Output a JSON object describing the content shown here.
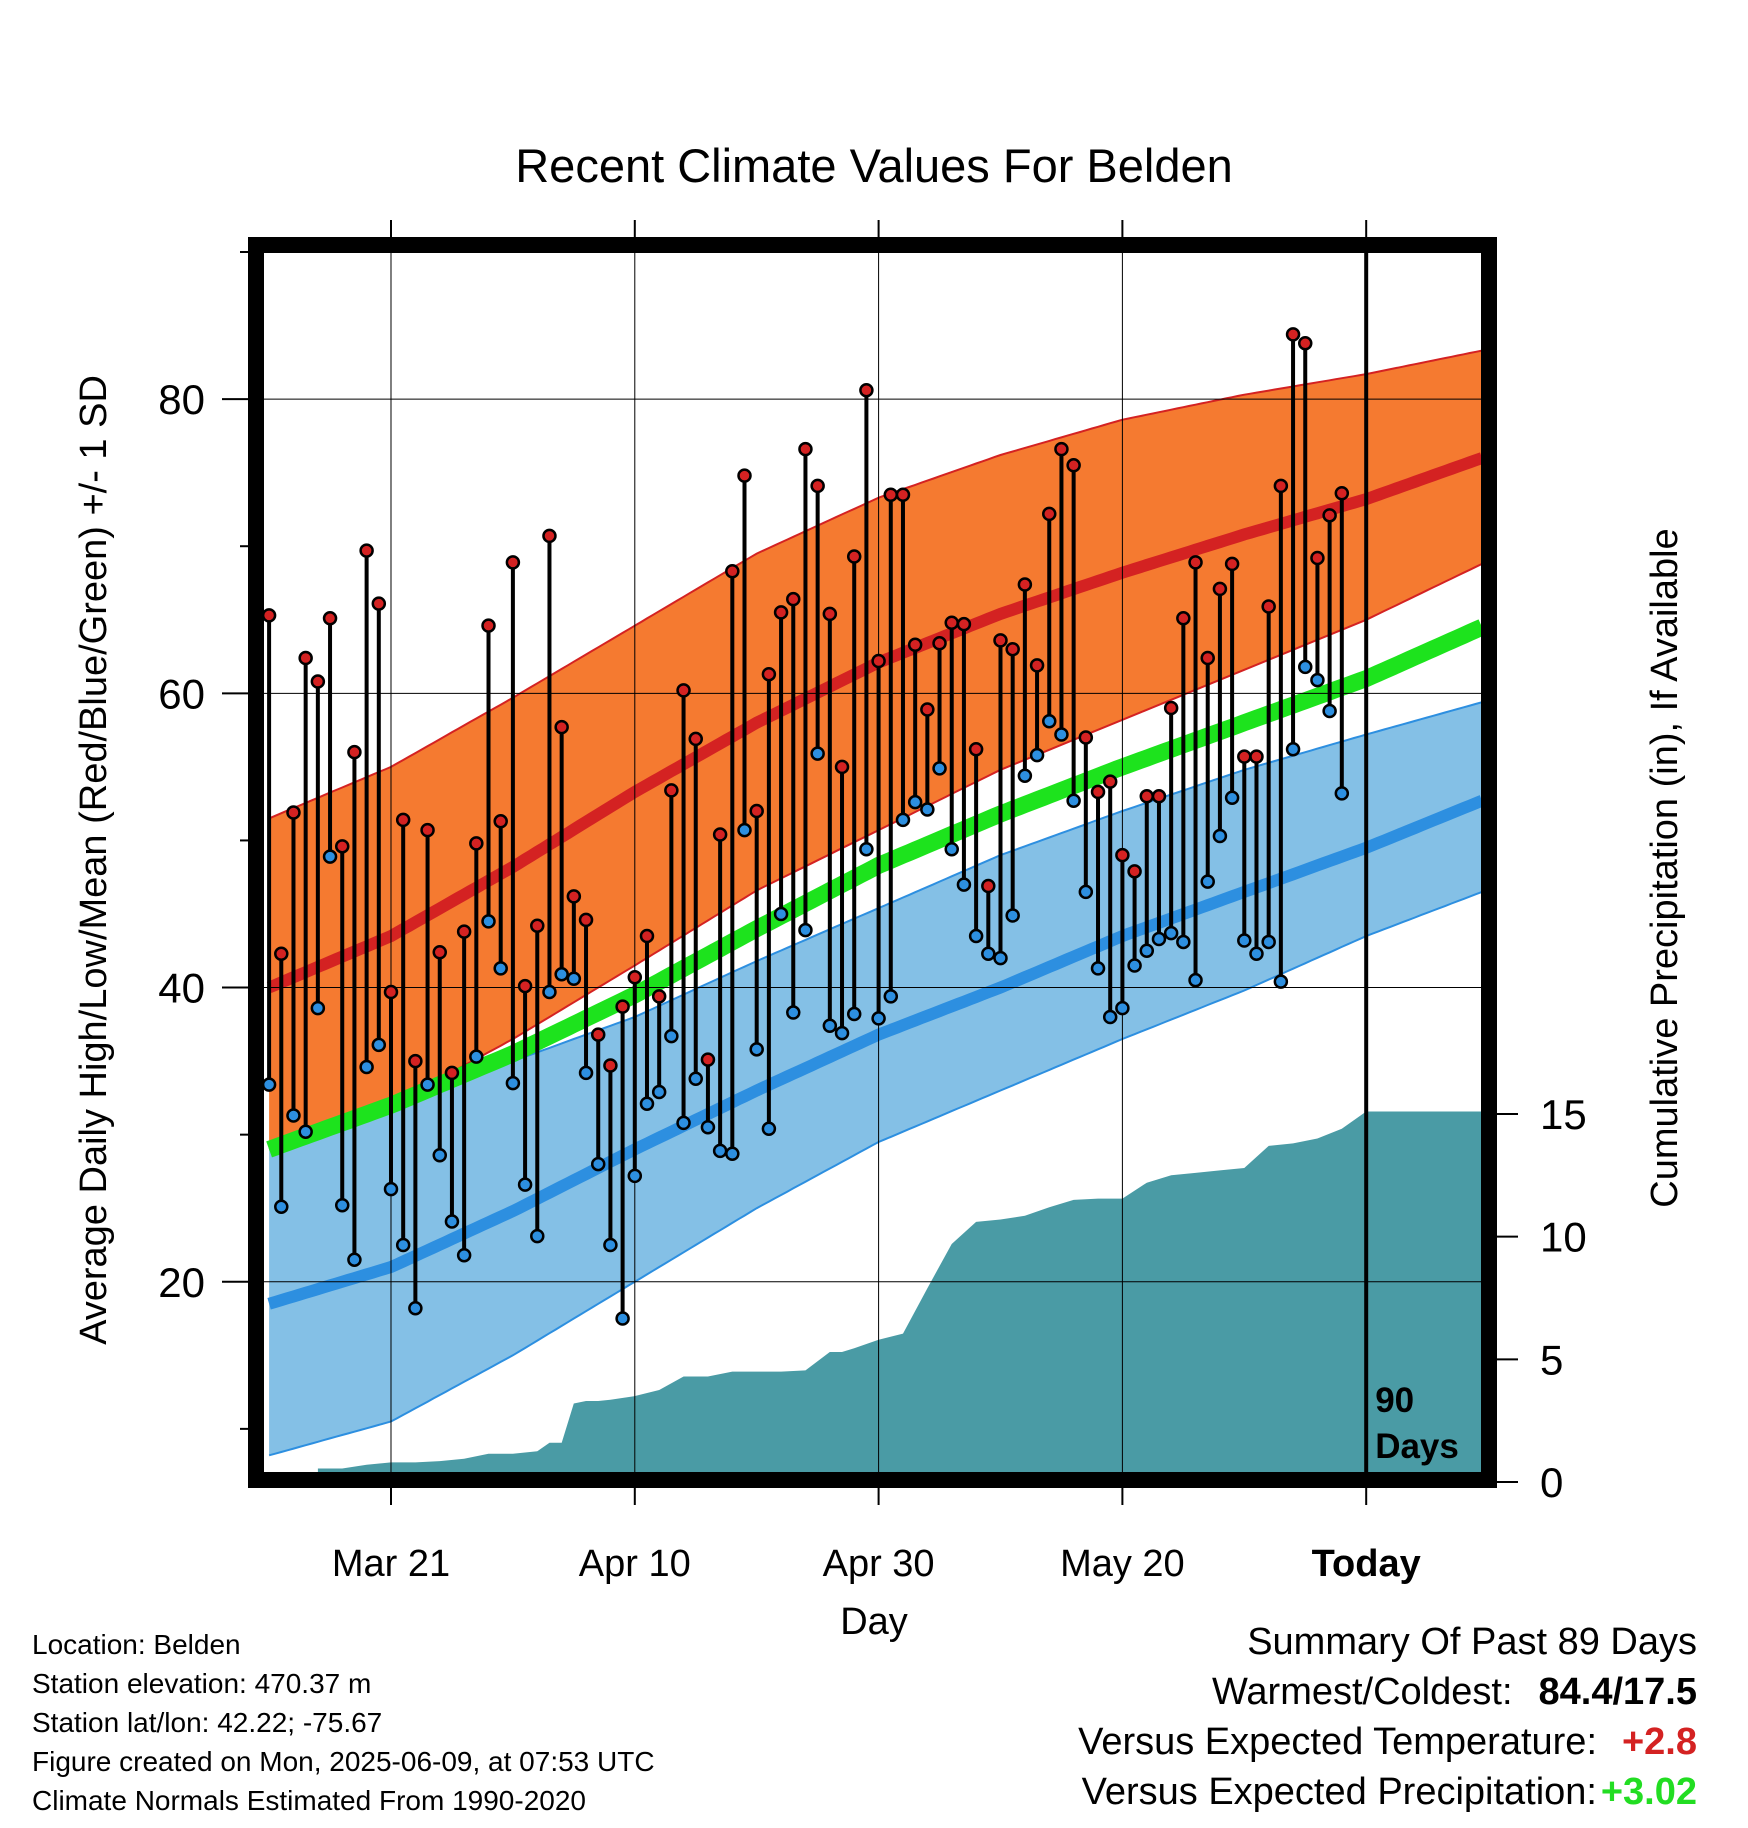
{
  "title": "Recent Climate Values For Belden",
  "chart_data": {
    "type": "line",
    "title": "Recent Climate Values For Belden",
    "xlabel": "Day",
    "ylabel": "Average Daily High/Low/Mean (Red/Blue/Green) +/- 1 SD",
    "y2label": "Cumulative Precipitation (in), If Available",
    "ylim": [
      7,
      90
    ],
    "y2lim": [
      0,
      30
    ],
    "x_tick_labels": [
      "Mar 21",
      "Apr 10",
      "Apr 30",
      "May 20",
      "Today"
    ],
    "x_tick_day_index": [
      10,
      30,
      50,
      70,
      90
    ],
    "xlim_day_index": [
      -0.5,
      99.5
    ],
    "y_ticks": [
      20,
      40,
      60,
      80
    ],
    "y2_ticks": [
      0,
      5,
      10,
      15
    ],
    "grid": true,
    "today_marker": {
      "day_index": 90,
      "label_line1": "90",
      "label_line2": "Days"
    },
    "normals": {
      "day_index": [
        0,
        10,
        20,
        30,
        40,
        50,
        60,
        70,
        80,
        90,
        99.5
      ],
      "high_mean": [
        40.0,
        43.5,
        48.2,
        53.3,
        58.0,
        62.1,
        65.4,
        68.2,
        70.8,
        73.2,
        76.0
      ],
      "high_upper": [
        51.5,
        55.0,
        59.7,
        64.6,
        69.5,
        73.3,
        76.2,
        78.6,
        80.3,
        81.7,
        83.3
      ],
      "high_lower": [
        29.0,
        32.0,
        36.5,
        41.5,
        46.6,
        50.7,
        54.8,
        58.2,
        61.6,
        65.0,
        68.8
      ],
      "avg_mean": [
        29.0,
        32.0,
        35.5,
        39.5,
        44.0,
        48.3,
        51.8,
        55.0,
        58.0,
        61.0,
        64.5
      ],
      "low_mean": [
        18.5,
        21.0,
        24.8,
        29.0,
        33.0,
        36.8,
        40.0,
        43.5,
        46.5,
        49.5,
        52.7
      ],
      "low_upper": [
        29.0,
        31.8,
        35.0,
        38.0,
        41.8,
        45.4,
        49.0,
        52.0,
        54.8,
        57.2,
        59.4
      ],
      "low_lower": [
        8.2,
        10.5,
        15.0,
        20.0,
        25.0,
        29.5,
        33.0,
        36.5,
        39.8,
        43.5,
        46.5
      ]
    },
    "series": [
      {
        "name": "High",
        "color": "#d42222",
        "values": [
          65.3,
          42.3,
          51.9,
          62.4,
          60.8,
          65.1,
          49.6,
          56.0,
          69.7,
          66.1,
          39.7,
          51.4,
          35.0,
          50.7,
          42.4,
          34.2,
          43.8,
          49.8,
          64.6,
          51.3,
          68.9,
          40.1,
          44.2,
          70.7,
          57.7,
          46.2,
          44.6,
          36.8,
          34.7,
          38.7,
          40.7,
          43.5,
          39.4,
          53.4,
          60.2,
          56.9,
          35.1,
          50.4,
          68.3,
          74.8,
          52.0,
          61.3,
          65.5,
          66.4,
          76.6,
          74.1,
          65.4,
          55.0,
          69.3,
          80.6,
          62.2,
          73.5,
          73.5,
          63.3,
          58.9,
          63.4,
          64.8,
          64.7,
          56.2,
          46.9,
          63.6,
          63.0,
          67.4,
          61.9,
          72.2,
          76.6,
          75.5,
          57.0,
          53.3,
          54.0,
          49.0,
          47.9,
          53.0,
          53.0,
          59.0,
          65.1,
          68.9,
          62.4,
          67.1,
          68.8,
          55.7,
          55.7,
          65.9,
          74.1,
          84.4,
          83.8,
          69.2,
          72.1,
          73.6
        ]
      },
      {
        "name": "Low",
        "color": "#2d8fe0",
        "values": [
          33.4,
          25.1,
          31.3,
          30.2,
          38.6,
          48.9,
          25.2,
          21.5,
          34.6,
          36.1,
          26.3,
          22.5,
          18.2,
          33.4,
          28.6,
          24.1,
          21.8,
          35.3,
          44.5,
          41.3,
          33.5,
          26.6,
          23.1,
          39.7,
          40.9,
          40.6,
          34.2,
          28.0,
          22.5,
          17.5,
          27.2,
          32.1,
          32.9,
          36.7,
          30.8,
          33.8,
          30.5,
          28.9,
          28.7,
          50.7,
          35.8,
          30.4,
          45.0,
          38.3,
          43.9,
          55.9,
          37.4,
          36.9,
          38.2,
          49.4,
          37.9,
          39.4,
          51.4,
          52.6,
          52.1,
          54.9,
          49.4,
          47.0,
          43.5,
          42.3,
          42.0,
          44.9,
          54.4,
          55.8,
          58.1,
          57.2,
          52.7,
          46.5,
          41.3,
          38.0,
          38.6,
          41.5,
          42.5,
          43.3,
          43.7,
          43.1,
          40.5,
          47.2,
          50.3,
          52.9,
          43.2,
          42.3,
          43.1,
          40.4,
          56.2,
          61.8,
          60.9,
          58.8,
          53.2
        ]
      },
      {
        "name": "Cumulative Precipitation",
        "color": "#4a9ba5",
        "day_index": [
          4,
          6,
          8,
          10,
          12,
          14,
          16,
          18,
          20,
          22,
          23,
          24,
          25,
          26,
          27,
          28,
          30,
          32,
          34,
          36,
          38,
          40,
          42,
          44,
          46,
          47,
          48,
          50,
          52,
          54,
          56,
          58,
          60,
          62,
          64,
          66,
          68,
          70,
          72,
          74,
          76,
          78,
          80,
          82,
          84,
          86,
          88,
          90,
          99.5
        ],
        "values": [
          0.55,
          0.55,
          0.7,
          0.8,
          0.8,
          0.85,
          0.95,
          1.15,
          1.15,
          1.25,
          1.6,
          1.6,
          3.2,
          3.3,
          3.3,
          3.35,
          3.5,
          3.75,
          4.3,
          4.3,
          4.5,
          4.5,
          4.5,
          4.55,
          5.3,
          5.3,
          5.45,
          5.8,
          6.05,
          7.9,
          9.7,
          10.6,
          10.7,
          10.85,
          11.2,
          11.5,
          11.55,
          11.55,
          12.2,
          12.5,
          12.6,
          12.7,
          12.8,
          13.7,
          13.8,
          14.0,
          14.4,
          15.1,
          15.1
        ]
      }
    ]
  },
  "info": {
    "location": "Location: Belden",
    "elevation": "Station elevation: 470.37 m",
    "latlon": "Station lat/lon: 42.22; -75.67",
    "created": "Figure created on Mon, 2025-06-09, at 07:53 UTC",
    "normals": "Climate Normals Estimated From 1990-2020"
  },
  "summary": {
    "heading": "Summary Of Past 89 Days",
    "warmest_label": "Warmest/Coldest:",
    "warmest_value": "84.4/17.5",
    "temp_label": "Versus Expected Temperature:",
    "temp_value": "+2.8",
    "temp_color": "#d42222",
    "precip_label": "Versus Expected Precipitation:",
    "precip_value": "+3.02",
    "precip_color": "#22dd22"
  }
}
